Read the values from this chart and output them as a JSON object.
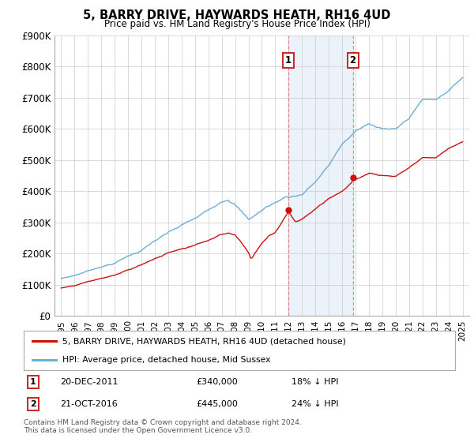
{
  "title": "5, BARRY DRIVE, HAYWARDS HEATH, RH16 4UD",
  "subtitle": "Price paid vs. HM Land Registry's House Price Index (HPI)",
  "ylabel_ticks": [
    "£0",
    "£100K",
    "£200K",
    "£300K",
    "£400K",
    "£500K",
    "£600K",
    "£700K",
    "£800K",
    "£900K"
  ],
  "ylim": [
    0,
    900000
  ],
  "hpi_color": "#6baed6",
  "price_color": "#cc1111",
  "marker1_date": 2011.97,
  "marker1_price": 340000,
  "marker2_date": 2016.8,
  "marker2_price": 445000,
  "legend_line1": "5, BARRY DRIVE, HAYWARDS HEATH, RH16 4UD (detached house)",
  "legend_line2": "HPI: Average price, detached house, Mid Sussex",
  "background_color": "#ffffff",
  "grid_color": "#cccccc",
  "shade_color": "#dce9f5",
  "vline_color": "#e08080",
  "footnote": "Contains HM Land Registry data © Crown copyright and database right 2024.\nThis data is licensed under the Open Government Licence v3.0."
}
